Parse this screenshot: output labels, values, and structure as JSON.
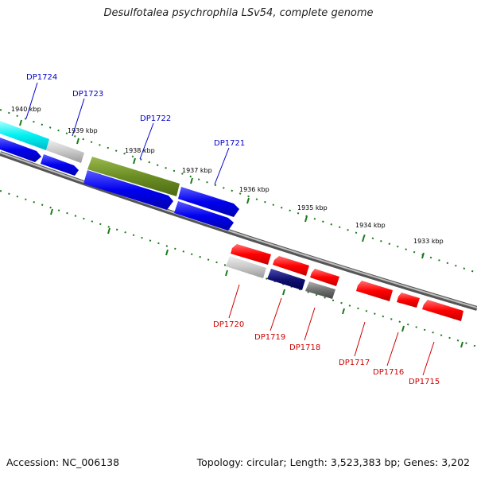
{
  "title": "Desulfotalea psychrophila LSv54, complete genome",
  "footer": {
    "accession": "Accession: NC_006138",
    "topology": "Topology: circular; Length: 3,523,383 bp; Genes: 3,202"
  },
  "scale_labels": [
    "1940 kbp",
    "1939 kbp",
    "1938 kbp",
    "1937 kbp",
    "1936 kbp",
    "1935 kbp",
    "1934 kbp",
    "1933 kbp"
  ],
  "colors": {
    "forward_label": "#0000cc",
    "reverse_label": "#cc0000",
    "backbone": "#777777",
    "tick": "#1a7a1a"
  },
  "forward_genes": [
    {
      "id": "DP1724"
    },
    {
      "id": "DP1723"
    },
    {
      "id": "DP1722"
    },
    {
      "id": "DP1721"
    }
  ],
  "reverse_genes": [
    {
      "id": "DP1720"
    },
    {
      "id": "DP1719"
    },
    {
      "id": "DP1718"
    },
    {
      "id": "DP1717"
    },
    {
      "id": "DP1716"
    },
    {
      "id": "DP1715"
    }
  ]
}
